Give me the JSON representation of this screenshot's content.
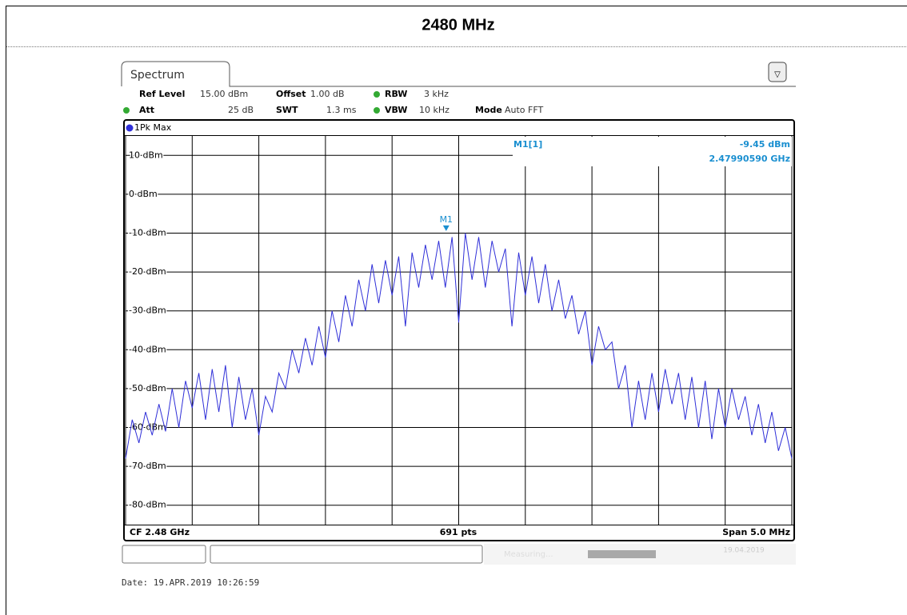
{
  "page": {
    "title": "2480 MHz",
    "tab": "Spectrum",
    "settings": [
      {
        "label": "Ref Level",
        "value": "15.00 dBm"
      },
      {
        "label": "Offset",
        "value": "1.00 dB"
      },
      {
        "label": "RBW",
        "value": "3 kHz"
      },
      {
        "label": "Att",
        "value": "25 dB"
      },
      {
        "label": "SWT",
        "value": "1.3 ms"
      },
      {
        "label": "VBW",
        "value": "10 kHz"
      },
      {
        "label": "Mode",
        "value": "Auto FFT"
      }
    ],
    "trace": "1Pk Max",
    "footer": {
      "left": "CF 2.48 GHz",
      "center": "691 pts",
      "right": "Span 5.0 MHz"
    },
    "status": "Measuring...",
    "status_date": "19.04.2019",
    "date": "Date: 19.APR.2019  10:26:59"
  },
  "chart_data": {
    "type": "line",
    "color": "#2f2fd8",
    "grid": true,
    "xlim": [
      2477.5,
      2482.5
    ],
    "xticks": [
      2477.5,
      2478,
      2478.5,
      2479,
      2479.5,
      2480,
      2480.5,
      2481,
      2481.5,
      2482,
      2482.5
    ],
    "ylim": [
      -85,
      15
    ],
    "yticks": [
      {
        "value": 10,
        "label": "10 dBm"
      },
      {
        "value": 0,
        "label": "0 dBm"
      },
      {
        "value": -10,
        "label": "-10 dBm"
      },
      {
        "value": -20,
        "label": "-20 dBm"
      },
      {
        "value": -30,
        "label": "-30 dBm"
      },
      {
        "value": -40,
        "label": "-40 dBm"
      },
      {
        "value": -50,
        "label": "-50 dBm"
      },
      {
        "value": -60,
        "label": "-60 dBm"
      },
      {
        "value": -70,
        "label": "-70 dBm"
      },
      {
        "value": -80,
        "label": "-80 dBm"
      }
    ],
    "x": [
      2477.5,
      2477.55,
      2477.6,
      2477.65,
      2477.7,
      2477.75,
      2477.8,
      2477.85,
      2477.9,
      2477.95,
      2478,
      2478.05,
      2478.1,
      2478.15,
      2478.2,
      2478.25,
      2478.3,
      2478.35,
      2478.4,
      2478.45,
      2478.5,
      2478.55,
      2478.6,
      2478.65,
      2478.7,
      2478.75,
      2478.8,
      2478.85,
      2478.9,
      2478.95,
      2479,
      2479.05,
      2479.1,
      2479.15,
      2479.2,
      2479.25,
      2479.3,
      2479.35,
      2479.4,
      2479.45,
      2479.5,
      2479.55,
      2479.6,
      2479.65,
      2479.7,
      2479.75,
      2479.8,
      2479.85,
      2479.9,
      2479.95,
      2480,
      2480.05,
      2480.1,
      2480.15,
      2480.2,
      2480.25,
      2480.3,
      2480.35,
      2480.4,
      2480.45,
      2480.5,
      2480.55,
      2480.6,
      2480.65,
      2480.7,
      2480.75,
      2480.8,
      2480.85,
      2480.9,
      2480.95,
      2481,
      2481.05,
      2481.1,
      2481.15,
      2481.2,
      2481.25,
      2481.3,
      2481.35,
      2481.4,
      2481.45,
      2481.5,
      2481.55,
      2481.6,
      2481.65,
      2481.7,
      2481.75,
      2481.8,
      2481.85,
      2481.9,
      2481.95,
      2482,
      2482.05,
      2482.1,
      2482.15,
      2482.2,
      2482.25,
      2482.3,
      2482.35,
      2482.4,
      2482.45,
      2482.5
    ],
    "values": [
      -68,
      -58,
      -64,
      -56,
      -62,
      -54,
      -61,
      -50,
      -60,
      -48,
      -55,
      -46,
      -58,
      -45,
      -56,
      -44,
      -60,
      -47,
      -58,
      -50,
      -62,
      -52,
      -56,
      -46,
      -50,
      -40,
      -46,
      -37,
      -44,
      -34,
      -42,
      -30,
      -38,
      -26,
      -34,
      -22,
      -30,
      -18,
      -28,
      -17,
      -26,
      -16,
      -34,
      -15,
      -24,
      -13,
      -22,
      -12,
      -24,
      -11,
      -33,
      -10,
      -22,
      -11,
      -24,
      -12,
      -20,
      -14,
      -34,
      -15,
      -26,
      -16,
      -28,
      -18,
      -30,
      -22,
      -32,
      -26,
      -36,
      -30,
      -44,
      -34,
      -40,
      -38,
      -50,
      -44,
      -60,
      -48,
      -58,
      -46,
      -56,
      -45,
      -54,
      -46,
      -58,
      -47,
      -60,
      -48,
      -63,
      -50,
      -60,
      -50,
      -58,
      -52,
      -62,
      -54,
      -64,
      -56,
      -66,
      -60,
      -68
    ],
    "marker": {
      "label": "M1",
      "name": "M1[1]",
      "value": -9.45,
      "value_label": "-9.45 dBm",
      "x": 2479.9059,
      "x_label": "2.47990590 GHz",
      "color": "#1a8fd0"
    }
  }
}
